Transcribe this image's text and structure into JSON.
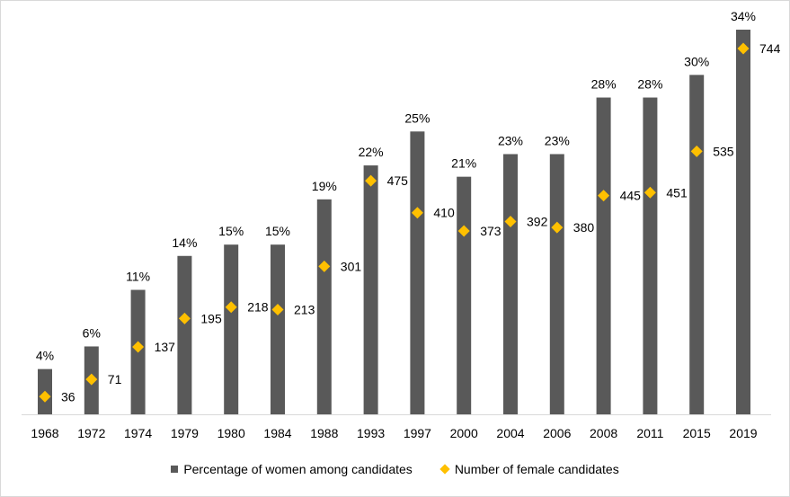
{
  "chart_data": {
    "type": "bar",
    "categories": [
      "1968",
      "1972",
      "1974",
      "1979",
      "1980",
      "1984",
      "1988",
      "1993",
      "1997",
      "2000",
      "2004",
      "2006",
      "2008",
      "2011",
      "2015",
      "2019"
    ],
    "series": [
      {
        "name": "Percentage of women among candidates",
        "kind": "bar",
        "color": "#595959",
        "values": [
          4,
          6,
          11,
          14,
          15,
          15,
          19,
          22,
          25,
          21,
          23,
          23,
          28,
          28,
          30,
          34
        ],
        "labels": [
          "4%",
          "6%",
          "11%",
          "14%",
          "15%",
          "15%",
          "19%",
          "22%",
          "25%",
          "21%",
          "23%",
          "23%",
          "28%",
          "28%",
          "30%",
          "34%"
        ]
      },
      {
        "name": "Number of female candidates",
        "kind": "marker",
        "marker": "diamond",
        "color": "#ffc000",
        "values": [
          36,
          71,
          137,
          195,
          218,
          213,
          301,
          475,
          410,
          373,
          392,
          380,
          445,
          451,
          535,
          744
        ],
        "labels": [
          "36",
          "71",
          "137",
          "195",
          "218",
          "213",
          "301",
          "475",
          "410",
          "373",
          "392",
          "380",
          "445",
          "451",
          "535",
          "744"
        ]
      }
    ],
    "ylim_percent": [
      0,
      34
    ],
    "ylim_count": [
      0,
      744
    ],
    "gridlines": false,
    "legend_position": "bottom"
  }
}
